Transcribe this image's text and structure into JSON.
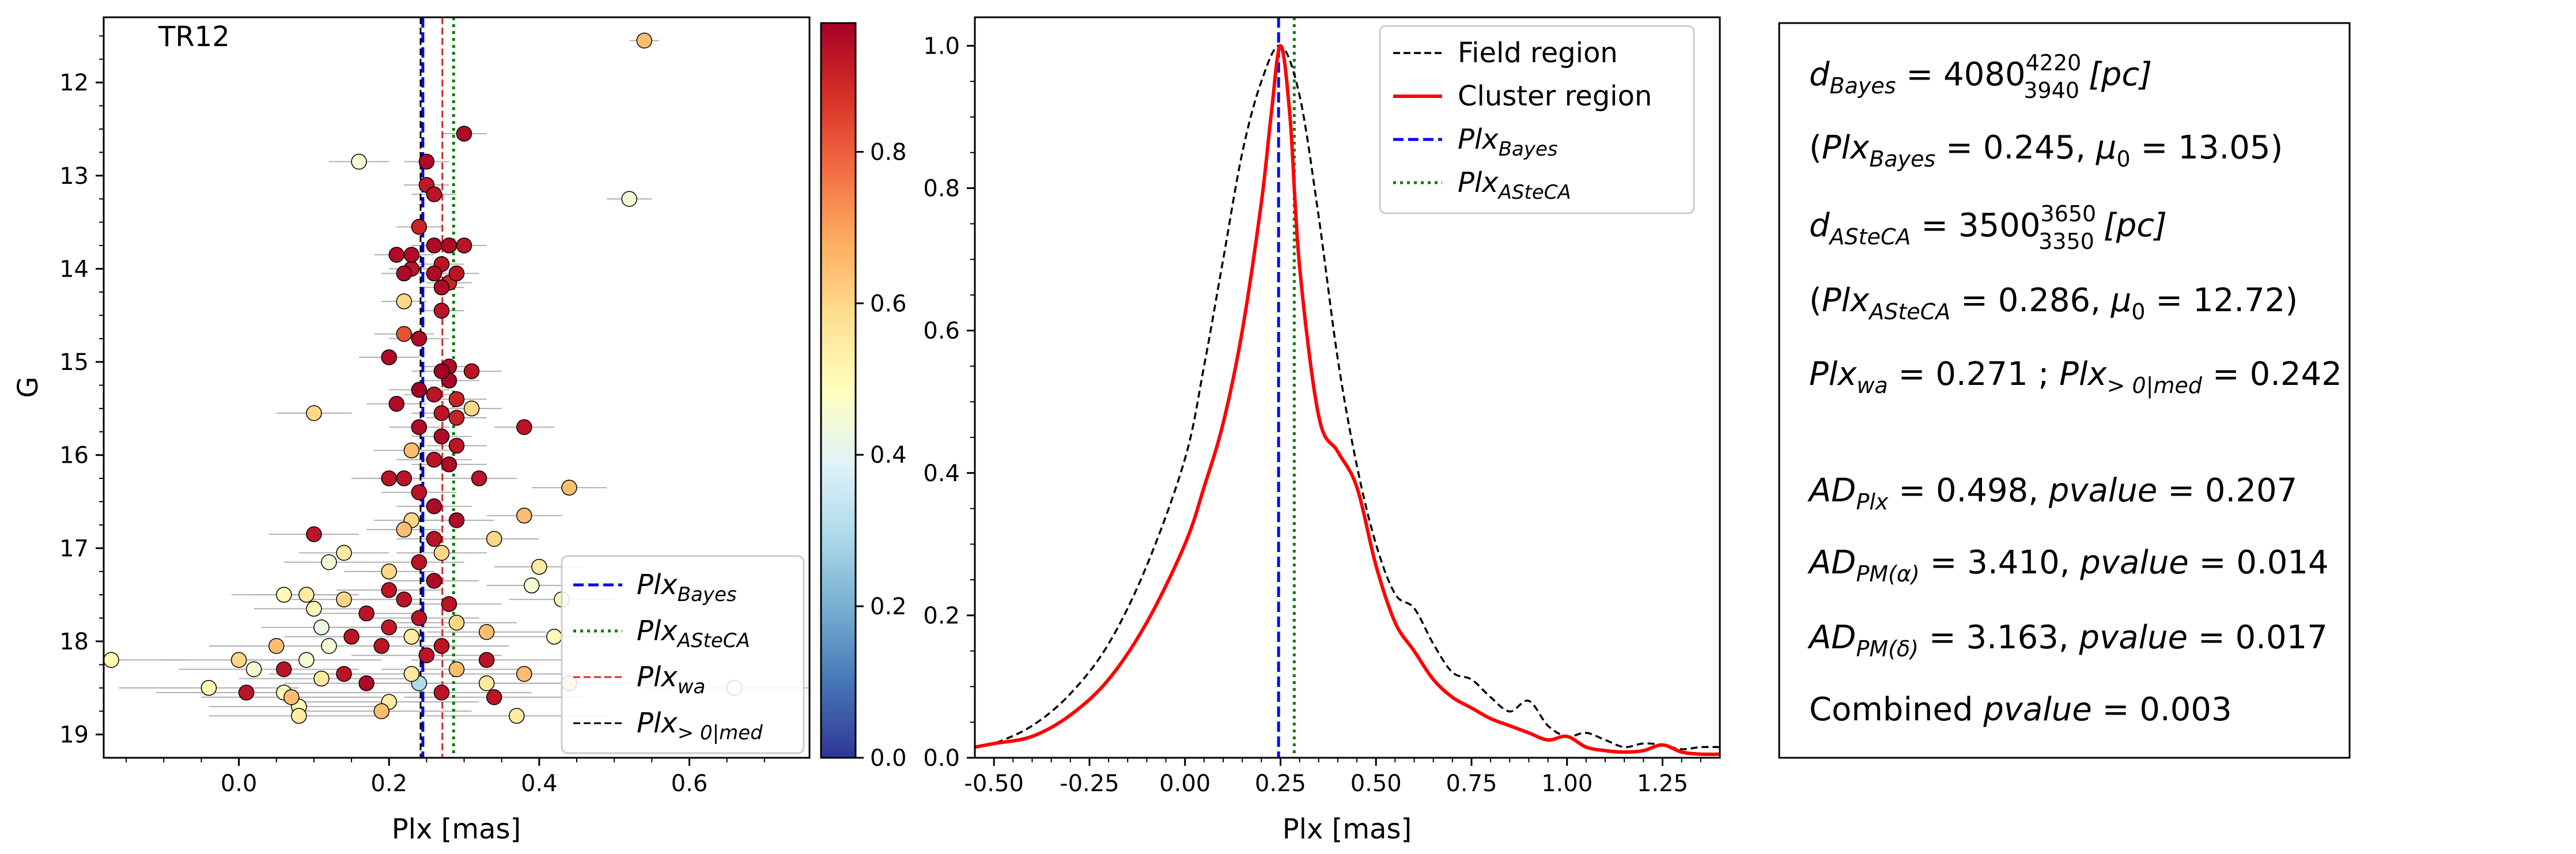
{
  "colors": {
    "blue": "#0000ff",
    "green": "#008000",
    "red_line": "#d62728",
    "black": "#000000",
    "errbar": "#b0b0b0",
    "cluster_curve": "#ff0000"
  },
  "panel_a": {
    "label": "TR12",
    "xlabel": "Plx [mas]",
    "ylabel": "G",
    "colorbar_ticks": [
      "0.0",
      "0.2",
      "0.4",
      "0.6",
      "0.8"
    ],
    "legend": [
      {
        "prefix": "Plx",
        "sub": "Bayes",
        "style": "dashed",
        "color": "#0000ff"
      },
      {
        "prefix": "Plx",
        "sub": "ASteCA",
        "style": "dotted",
        "color": "#008000"
      },
      {
        "prefix": "Plx",
        "sub": "wa",
        "style": "dashed-thin",
        "color": "#d62728"
      },
      {
        "prefix": "Plx",
        "sub": "> 0|med",
        "style": "dashed-thin",
        "color": "#000000"
      }
    ]
  },
  "panel_b": {
    "xlabel": "Plx [mas]",
    "legend": [
      {
        "label": "Field region",
        "sub": "",
        "style": "dashed-thin",
        "color": "#000000",
        "italic": false
      },
      {
        "label": "Cluster region",
        "sub": "",
        "style": "solid",
        "color": "#ff0000",
        "italic": false
      },
      {
        "label": "Plx",
        "sub": "Bayes",
        "style": "dashed",
        "color": "#0000ff",
        "italic": true
      },
      {
        "label": "Plx",
        "sub": "ASteCA",
        "style": "dotted",
        "color": "#008000",
        "italic": true
      }
    ]
  },
  "info": {
    "d_bayes": {
      "lhs": "d",
      "lhs_sub": "Bayes",
      "value": "4080",
      "sup": "4220",
      "sub": "3940",
      "unit": "[pc]"
    },
    "bayes_params": {
      "plx_sub": "Bayes",
      "plx_val": "0.245",
      "mu_val": "13.05"
    },
    "d_asteca": {
      "lhs": "d",
      "lhs_sub": "ASteCA",
      "value": "3500",
      "sup": "3650",
      "sub": "3350",
      "unit": "[pc]"
    },
    "asteca_params": {
      "plx_sub": "ASteCA",
      "plx_val": "0.286",
      "mu_val": "12.72"
    },
    "plx_wa": {
      "sub": "wa",
      "value": "0.271"
    },
    "plx_med": {
      "sub": "> 0|med",
      "value": "0.242"
    },
    "ad_plx": {
      "sub": "Plx",
      "ad": "0.498",
      "p": "0.207"
    },
    "ad_pma": {
      "sub": "PM(α)",
      "ad": "3.410",
      "p": "0.014"
    },
    "ad_pmd": {
      "sub": "PM(δ)",
      "ad": "3.163",
      "p": "0.017"
    },
    "combined": {
      "label": "Combined",
      "p": "0.003"
    }
  },
  "chart_data": [
    {
      "type": "scatter",
      "title": "TR12",
      "xlabel": "Plx [mas]",
      "ylabel": "G",
      "xlim": [
        -0.18,
        0.76
      ],
      "ylim": [
        19.25,
        11.3
      ],
      "y_inverted": true,
      "x_ticks": [
        0.0,
        0.2,
        0.4,
        0.6
      ],
      "y_ticks": [
        12,
        13,
        14,
        15,
        16,
        17,
        18,
        19
      ],
      "colormap": "RdYlBu_r",
      "colorbar_range": [
        0.0,
        0.97
      ],
      "colorbar_ticks": [
        0.0,
        0.2,
        0.4,
        0.6,
        0.8
      ],
      "vlines": [
        {
          "name": "Plx_Bayes",
          "x": 0.245,
          "style": "dashed",
          "color": "#0000ff"
        },
        {
          "name": "Plx_ASteCA",
          "x": 0.286,
          "style": "dotted",
          "color": "#008000"
        },
        {
          "name": "Plx_wa",
          "x": 0.271,
          "style": "dashed",
          "color": "#d62728"
        },
        {
          "name": "Plx_>0|med",
          "x": 0.242,
          "style": "dashed",
          "color": "#000000"
        }
      ],
      "points": [
        {
          "x": 0.54,
          "y": 11.55,
          "err": 0.02,
          "p": 0.65
        },
        {
          "x": 0.3,
          "y": 12.55,
          "err": 0.03,
          "p": 0.95
        },
        {
          "x": 0.16,
          "y": 12.85,
          "err": 0.04,
          "p": 0.45
        },
        {
          "x": 0.25,
          "y": 12.85,
          "err": 0.03,
          "p": 0.95
        },
        {
          "x": 0.52,
          "y": 13.25,
          "err": 0.03,
          "p": 0.45
        },
        {
          "x": 0.25,
          "y": 13.1,
          "err": 0.03,
          "p": 0.92
        },
        {
          "x": 0.26,
          "y": 13.2,
          "err": 0.03,
          "p": 0.93
        },
        {
          "x": 0.24,
          "y": 13.55,
          "err": 0.03,
          "p": 0.9
        },
        {
          "x": 0.26,
          "y": 13.75,
          "err": 0.03,
          "p": 0.95
        },
        {
          "x": 0.3,
          "y": 13.75,
          "err": 0.03,
          "p": 0.93
        },
        {
          "x": 0.21,
          "y": 13.85,
          "err": 0.03,
          "p": 0.95
        },
        {
          "x": 0.23,
          "y": 13.85,
          "err": 0.03,
          "p": 0.95
        },
        {
          "x": 0.28,
          "y": 13.75,
          "err": 0.03,
          "p": 0.95
        },
        {
          "x": 0.27,
          "y": 13.95,
          "err": 0.03,
          "p": 0.93
        },
        {
          "x": 0.22,
          "y": 14.05,
          "err": 0.03,
          "p": 0.95
        },
        {
          "x": 0.23,
          "y": 14.0,
          "err": 0.03,
          "p": 0.93
        },
        {
          "x": 0.26,
          "y": 14.05,
          "err": 0.03,
          "p": 0.95
        },
        {
          "x": 0.29,
          "y": 14.05,
          "err": 0.03,
          "p": 0.93
        },
        {
          "x": 0.28,
          "y": 14.15,
          "err": 0.03,
          "p": 0.9
        },
        {
          "x": 0.27,
          "y": 14.2,
          "err": 0.03,
          "p": 0.95
        },
        {
          "x": 0.22,
          "y": 14.35,
          "err": 0.03,
          "p": 0.6
        },
        {
          "x": 0.27,
          "y": 14.45,
          "err": 0.03,
          "p": 0.93
        },
        {
          "x": 0.22,
          "y": 14.7,
          "err": 0.04,
          "p": 0.82
        },
        {
          "x": 0.24,
          "y": 14.75,
          "err": 0.04,
          "p": 0.95
        },
        {
          "x": 0.2,
          "y": 14.95,
          "err": 0.04,
          "p": 0.95
        },
        {
          "x": 0.27,
          "y": 15.1,
          "err": 0.04,
          "p": 0.97
        },
        {
          "x": 0.28,
          "y": 15.05,
          "err": 0.04,
          "p": 0.95
        },
        {
          "x": 0.31,
          "y": 15.1,
          "err": 0.04,
          "p": 0.93
        },
        {
          "x": 0.28,
          "y": 15.2,
          "err": 0.04,
          "p": 0.96
        },
        {
          "x": 0.24,
          "y": 15.3,
          "err": 0.04,
          "p": 0.97
        },
        {
          "x": 0.26,
          "y": 15.35,
          "err": 0.04,
          "p": 0.93
        },
        {
          "x": 0.29,
          "y": 15.4,
          "err": 0.04,
          "p": 0.9
        },
        {
          "x": 0.21,
          "y": 15.45,
          "err": 0.04,
          "p": 0.95
        },
        {
          "x": 0.31,
          "y": 15.5,
          "err": 0.04,
          "p": 0.6
        },
        {
          "x": 0.1,
          "y": 15.55,
          "err": 0.05,
          "p": 0.6
        },
        {
          "x": 0.27,
          "y": 15.55,
          "err": 0.04,
          "p": 0.93
        },
        {
          "x": 0.29,
          "y": 15.6,
          "err": 0.04,
          "p": 0.9
        },
        {
          "x": 0.24,
          "y": 15.7,
          "err": 0.04,
          "p": 0.95
        },
        {
          "x": 0.27,
          "y": 15.8,
          "err": 0.04,
          "p": 0.95
        },
        {
          "x": 0.38,
          "y": 15.7,
          "err": 0.04,
          "p": 0.93
        },
        {
          "x": 0.29,
          "y": 15.9,
          "err": 0.04,
          "p": 0.93
        },
        {
          "x": 0.23,
          "y": 15.95,
          "err": 0.05,
          "p": 0.65
        },
        {
          "x": 0.26,
          "y": 16.05,
          "err": 0.05,
          "p": 0.93
        },
        {
          "x": 0.2,
          "y": 16.25,
          "err": 0.05,
          "p": 0.93
        },
        {
          "x": 0.22,
          "y": 16.25,
          "err": 0.05,
          "p": 0.93
        },
        {
          "x": 0.28,
          "y": 16.1,
          "err": 0.05,
          "p": 0.95
        },
        {
          "x": 0.32,
          "y": 16.25,
          "err": 0.05,
          "p": 0.93
        },
        {
          "x": 0.44,
          "y": 16.35,
          "err": 0.05,
          "p": 0.65
        },
        {
          "x": 0.24,
          "y": 16.4,
          "err": 0.05,
          "p": 0.93
        },
        {
          "x": 0.26,
          "y": 16.55,
          "err": 0.05,
          "p": 0.95
        },
        {
          "x": 0.38,
          "y": 16.65,
          "err": 0.05,
          "p": 0.65
        },
        {
          "x": 0.29,
          "y": 16.7,
          "err": 0.05,
          "p": 0.95
        },
        {
          "x": 0.23,
          "y": 16.7,
          "err": 0.05,
          "p": 0.6
        },
        {
          "x": 0.22,
          "y": 16.8,
          "err": 0.05,
          "p": 0.65
        },
        {
          "x": 0.1,
          "y": 16.85,
          "err": 0.06,
          "p": 0.93
        },
        {
          "x": 0.26,
          "y": 16.9,
          "err": 0.05,
          "p": 0.93
        },
        {
          "x": 0.34,
          "y": 16.9,
          "err": 0.06,
          "p": 0.6
        },
        {
          "x": 0.14,
          "y": 17.05,
          "err": 0.06,
          "p": 0.55
        },
        {
          "x": 0.27,
          "y": 17.05,
          "err": 0.06,
          "p": 0.6
        },
        {
          "x": 0.24,
          "y": 17.15,
          "err": 0.06,
          "p": 0.93
        },
        {
          "x": 0.12,
          "y": 17.15,
          "err": 0.06,
          "p": 0.45
        },
        {
          "x": 0.4,
          "y": 17.2,
          "err": 0.06,
          "p": 0.55
        },
        {
          "x": 0.2,
          "y": 17.25,
          "err": 0.06,
          "p": 0.6
        },
        {
          "x": 0.26,
          "y": 17.35,
          "err": 0.06,
          "p": 0.95
        },
        {
          "x": 0.39,
          "y": 17.4,
          "err": 0.06,
          "p": 0.45
        },
        {
          "x": 0.2,
          "y": 17.45,
          "err": 0.07,
          "p": 0.93
        },
        {
          "x": 0.06,
          "y": 17.5,
          "err": 0.07,
          "p": 0.5
        },
        {
          "x": 0.09,
          "y": 17.5,
          "err": 0.07,
          "p": 0.55
        },
        {
          "x": 0.14,
          "y": 17.55,
          "err": 0.07,
          "p": 0.6
        },
        {
          "x": 0.22,
          "y": 17.55,
          "err": 0.07,
          "p": 0.93
        },
        {
          "x": 0.28,
          "y": 17.6,
          "err": 0.07,
          "p": 0.93
        },
        {
          "x": 0.43,
          "y": 17.55,
          "err": 0.07,
          "p": 0.5
        },
        {
          "x": 0.1,
          "y": 17.65,
          "err": 0.08,
          "p": 0.5
        },
        {
          "x": 0.17,
          "y": 17.7,
          "err": 0.08,
          "p": 0.93
        },
        {
          "x": 0.24,
          "y": 17.75,
          "err": 0.08,
          "p": 0.93
        },
        {
          "x": 0.29,
          "y": 17.8,
          "err": 0.08,
          "p": 0.6
        },
        {
          "x": 0.11,
          "y": 17.85,
          "err": 0.08,
          "p": 0.42
        },
        {
          "x": 0.2,
          "y": 17.85,
          "err": 0.08,
          "p": 0.92
        },
        {
          "x": 0.33,
          "y": 17.9,
          "err": 0.08,
          "p": 0.65
        },
        {
          "x": 0.15,
          "y": 17.95,
          "err": 0.09,
          "p": 0.93
        },
        {
          "x": 0.23,
          "y": 17.95,
          "err": 0.09,
          "p": 0.55
        },
        {
          "x": 0.42,
          "y": 17.95,
          "err": 0.09,
          "p": 0.5
        },
        {
          "x": 0.05,
          "y": 18.05,
          "err": 0.09,
          "p": 0.65
        },
        {
          "x": 0.12,
          "y": 18.05,
          "err": 0.09,
          "p": 0.45
        },
        {
          "x": 0.19,
          "y": 18.05,
          "err": 0.09,
          "p": 0.93
        },
        {
          "x": 0.27,
          "y": 18.05,
          "err": 0.09,
          "p": 0.93
        },
        {
          "x": -0.17,
          "y": 18.2,
          "err": 0.1,
          "p": 0.5
        },
        {
          "x": 0.0,
          "y": 18.2,
          "err": 0.1,
          "p": 0.6
        },
        {
          "x": 0.09,
          "y": 18.2,
          "err": 0.1,
          "p": 0.45
        },
        {
          "x": 0.25,
          "y": 18.15,
          "err": 0.1,
          "p": 0.93
        },
        {
          "x": 0.33,
          "y": 18.2,
          "err": 0.1,
          "p": 0.93
        },
        {
          "x": 0.02,
          "y": 18.3,
          "err": 0.1,
          "p": 0.45
        },
        {
          "x": 0.06,
          "y": 18.3,
          "err": 0.1,
          "p": 0.93
        },
        {
          "x": 0.14,
          "y": 18.35,
          "err": 0.1,
          "p": 0.93
        },
        {
          "x": 0.23,
          "y": 18.35,
          "err": 0.1,
          "p": 0.55
        },
        {
          "x": 0.29,
          "y": 18.3,
          "err": 0.1,
          "p": 0.65
        },
        {
          "x": 0.38,
          "y": 18.35,
          "err": 0.1,
          "p": 0.65
        },
        {
          "x": 0.11,
          "y": 18.4,
          "err": 0.11,
          "p": 0.55
        },
        {
          "x": 0.17,
          "y": 18.45,
          "err": 0.11,
          "p": 0.95
        },
        {
          "x": 0.24,
          "y": 18.45,
          "err": 0.11,
          "p": 0.3
        },
        {
          "x": 0.33,
          "y": 18.45,
          "err": 0.11,
          "p": 0.55
        },
        {
          "x": 0.44,
          "y": 18.45,
          "err": 0.11,
          "p": 0.6
        },
        {
          "x": -0.04,
          "y": 18.5,
          "err": 0.12,
          "p": 0.5
        },
        {
          "x": 0.01,
          "y": 18.55,
          "err": 0.12,
          "p": 0.93
        },
        {
          "x": 0.06,
          "y": 18.55,
          "err": 0.12,
          "p": 0.5
        },
        {
          "x": 0.27,
          "y": 18.55,
          "err": 0.12,
          "p": 0.93
        },
        {
          "x": 0.66,
          "y": 18.5,
          "err": 0.12,
          "p": 0.45
        },
        {
          "x": 0.07,
          "y": 18.6,
          "err": 0.12,
          "p": 0.65
        },
        {
          "x": 0.2,
          "y": 18.65,
          "err": 0.12,
          "p": 0.55
        },
        {
          "x": 0.34,
          "y": 18.6,
          "err": 0.12,
          "p": 0.93
        },
        {
          "x": 0.08,
          "y": 18.7,
          "err": 0.12,
          "p": 0.5
        },
        {
          "x": 0.19,
          "y": 18.75,
          "err": 0.12,
          "p": 0.65
        },
        {
          "x": 0.08,
          "y": 18.8,
          "err": 0.12,
          "p": 0.55
        },
        {
          "x": 0.37,
          "y": 18.8,
          "err": 0.12,
          "p": 0.55
        }
      ]
    },
    {
      "type": "line",
      "xlabel": "Plx [mas]",
      "xlim": [
        -0.55,
        1.4
      ],
      "ylim": [
        0.0,
        1.04
      ],
      "x_ticks": [
        -0.5,
        -0.25,
        0.0,
        0.25,
        0.5,
        0.75,
        1.0,
        1.25
      ],
      "y_ticks": [
        0.0,
        0.2,
        0.4,
        0.6,
        0.8,
        1.0
      ],
      "vlines": [
        {
          "name": "Plx_Bayes",
          "x": 0.245,
          "style": "dashed",
          "color": "#0000ff"
        },
        {
          "name": "Plx_ASteCA",
          "x": 0.286,
          "style": "dotted",
          "color": "#008000"
        }
      ],
      "series": [
        {
          "name": "Field region",
          "style": "dashed",
          "color": "#000000",
          "x": [
            -0.55,
            -0.5,
            -0.4,
            -0.3,
            -0.2,
            -0.1,
            0.0,
            0.05,
            0.1,
            0.15,
            0.2,
            0.25,
            0.3,
            0.35,
            0.4,
            0.45,
            0.5,
            0.55,
            0.6,
            0.65,
            0.7,
            0.75,
            0.8,
            0.85,
            0.9,
            0.95,
            1.0,
            1.05,
            1.1,
            1.15,
            1.2,
            1.25,
            1.3,
            1.35,
            1.4
          ],
          "y": [
            0.015,
            0.02,
            0.045,
            0.09,
            0.16,
            0.27,
            0.42,
            0.55,
            0.7,
            0.85,
            0.95,
            1.0,
            0.93,
            0.76,
            0.56,
            0.41,
            0.3,
            0.23,
            0.21,
            0.16,
            0.12,
            0.11,
            0.085,
            0.065,
            0.08,
            0.045,
            0.03,
            0.035,
            0.025,
            0.015,
            0.02,
            0.018,
            0.012,
            0.015,
            0.015
          ]
        },
        {
          "name": "Cluster region",
          "style": "solid",
          "color": "#ff0000",
          "x": [
            -0.55,
            -0.5,
            -0.4,
            -0.3,
            -0.2,
            -0.1,
            0.0,
            0.05,
            0.1,
            0.15,
            0.2,
            0.225,
            0.25,
            0.275,
            0.3,
            0.35,
            0.4,
            0.45,
            0.5,
            0.55,
            0.6,
            0.65,
            0.7,
            0.75,
            0.8,
            0.85,
            0.9,
            0.95,
            1.0,
            1.05,
            1.1,
            1.15,
            1.2,
            1.25,
            1.3,
            1.35,
            1.4
          ],
          "y": [
            0.015,
            0.02,
            0.03,
            0.06,
            0.11,
            0.19,
            0.3,
            0.38,
            0.47,
            0.6,
            0.78,
            0.9,
            1.0,
            0.9,
            0.69,
            0.48,
            0.43,
            0.38,
            0.27,
            0.19,
            0.15,
            0.11,
            0.085,
            0.07,
            0.055,
            0.045,
            0.035,
            0.025,
            0.03,
            0.015,
            0.01,
            0.008,
            0.01,
            0.018,
            0.008,
            0.005,
            0.005
          ]
        }
      ]
    }
  ]
}
